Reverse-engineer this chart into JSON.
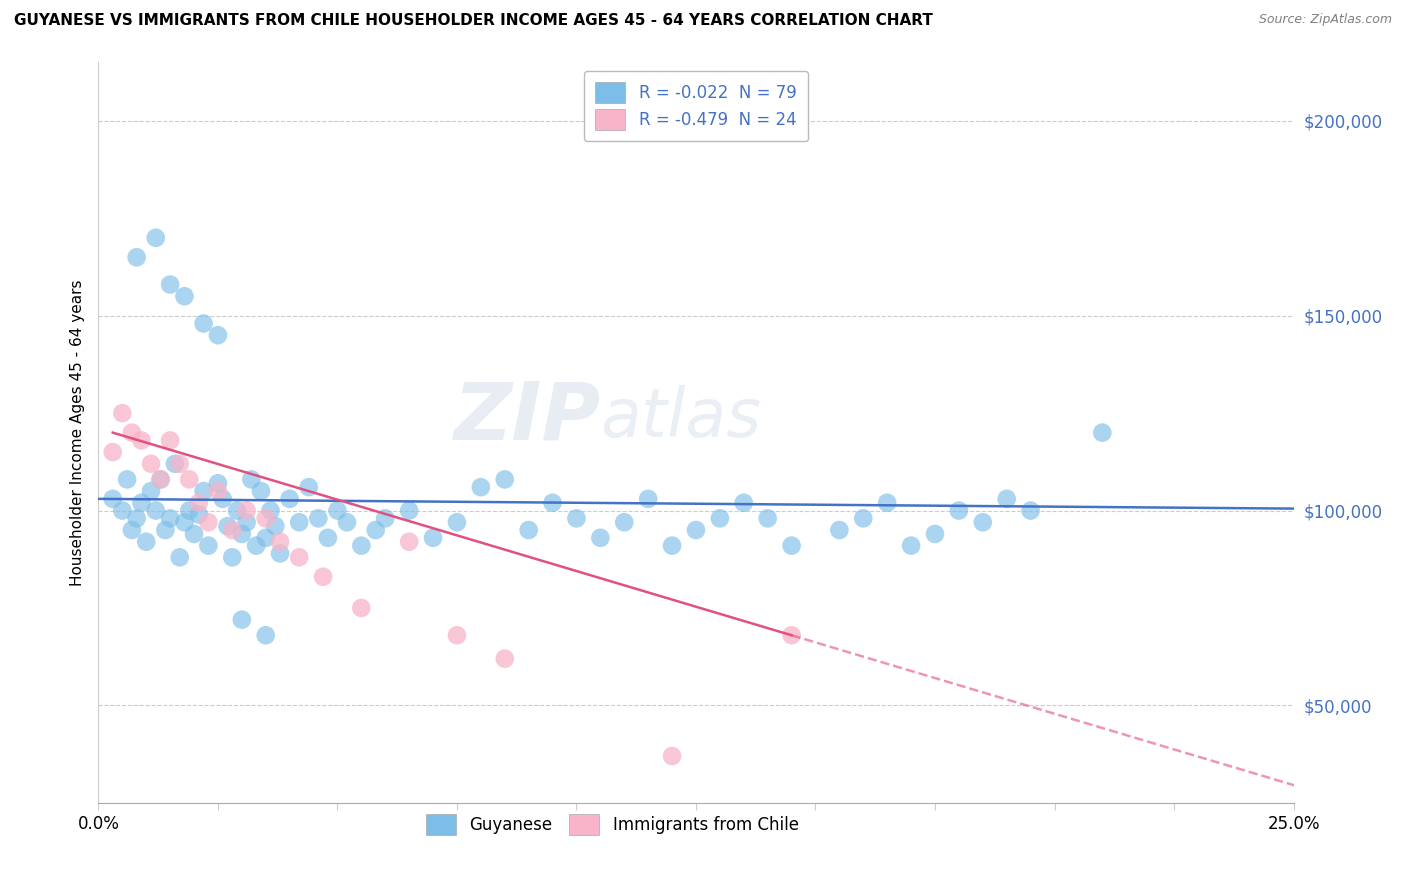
{
  "title": "GUYANESE VS IMMIGRANTS FROM CHILE HOUSEHOLDER INCOME AGES 45 - 64 YEARS CORRELATION CHART",
  "source": "Source: ZipAtlas.com",
  "ylabel": "Householder Income Ages 45 - 64 years",
  "ytick_labels": [
    "$50,000",
    "$100,000",
    "$150,000",
    "$200,000"
  ],
  "ytick_values": [
    50000,
    100000,
    150000,
    200000
  ],
  "xlim": [
    0.0,
    0.25
  ],
  "ylim": [
    25000,
    215000
  ],
  "legend1_label": "R = -0.022  N = 79",
  "legend2_label": "R = -0.479  N = 24",
  "legend_bottom1": "Guyanese",
  "legend_bottom2": "Immigrants from Chile",
  "blue_color": "#7dbee8",
  "pink_color": "#f8b4c8",
  "line_blue": "#4472c4",
  "line_pink": "#e05080",
  "watermark_zip": "ZIP",
  "watermark_atlas": "atlas",
  "guyanese_x": [
    0.003,
    0.005,
    0.006,
    0.007,
    0.008,
    0.009,
    0.01,
    0.011,
    0.012,
    0.013,
    0.014,
    0.015,
    0.016,
    0.017,
    0.018,
    0.019,
    0.02,
    0.021,
    0.022,
    0.023,
    0.025,
    0.026,
    0.027,
    0.028,
    0.029,
    0.03,
    0.031,
    0.032,
    0.033,
    0.034,
    0.035,
    0.036,
    0.037,
    0.038,
    0.04,
    0.042,
    0.044,
    0.046,
    0.048,
    0.05,
    0.052,
    0.055,
    0.058,
    0.06,
    0.065,
    0.07,
    0.075,
    0.08,
    0.085,
    0.09,
    0.095,
    0.1,
    0.105,
    0.11,
    0.115,
    0.12,
    0.125,
    0.13,
    0.135,
    0.14,
    0.145,
    0.155,
    0.16,
    0.165,
    0.17,
    0.175,
    0.18,
    0.185,
    0.19,
    0.195,
    0.008,
    0.012,
    0.015,
    0.018,
    0.022,
    0.025,
    0.03,
    0.035,
    0.21
  ],
  "guyanese_y": [
    103000,
    100000,
    108000,
    95000,
    98000,
    102000,
    92000,
    105000,
    100000,
    108000,
    95000,
    98000,
    112000,
    88000,
    97000,
    100000,
    94000,
    99000,
    105000,
    91000,
    107000,
    103000,
    96000,
    88000,
    100000,
    94000,
    97000,
    108000,
    91000,
    105000,
    93000,
    100000,
    96000,
    89000,
    103000,
    97000,
    106000,
    98000,
    93000,
    100000,
    97000,
    91000,
    95000,
    98000,
    100000,
    93000,
    97000,
    106000,
    108000,
    95000,
    102000,
    98000,
    93000,
    97000,
    103000,
    91000,
    95000,
    98000,
    102000,
    98000,
    91000,
    95000,
    98000,
    102000,
    91000,
    94000,
    100000,
    97000,
    103000,
    100000,
    165000,
    170000,
    158000,
    155000,
    148000,
    145000,
    72000,
    68000,
    120000
  ],
  "chile_x": [
    0.003,
    0.005,
    0.007,
    0.009,
    0.011,
    0.013,
    0.015,
    0.017,
    0.019,
    0.021,
    0.023,
    0.025,
    0.028,
    0.031,
    0.035,
    0.038,
    0.042,
    0.047,
    0.055,
    0.065,
    0.075,
    0.085,
    0.12,
    0.145
  ],
  "chile_y": [
    115000,
    125000,
    120000,
    118000,
    112000,
    108000,
    118000,
    112000,
    108000,
    102000,
    97000,
    105000,
    95000,
    100000,
    98000,
    92000,
    88000,
    83000,
    75000,
    92000,
    68000,
    62000,
    37000,
    68000
  ],
  "xtick_positions": [
    0.0,
    0.025,
    0.05,
    0.075,
    0.1,
    0.125,
    0.15,
    0.175,
    0.2,
    0.225,
    0.25
  ]
}
